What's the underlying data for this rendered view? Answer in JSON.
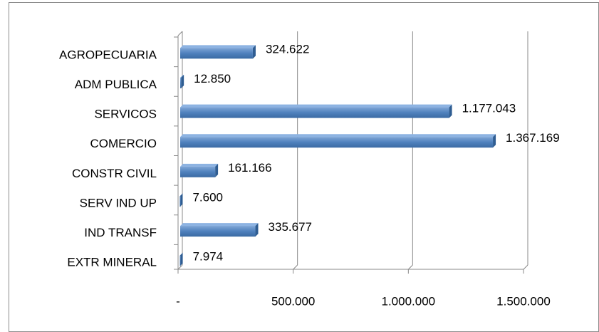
{
  "chart_data": {
    "type": "bar",
    "orientation": "horizontal",
    "categories": [
      "AGROPECUARIA",
      "ADM PUBLICA",
      "SERVICOS",
      "COMERCIO",
      "CONSTR CIVIL",
      "SERV IND  UP",
      "IND TRANSF",
      "EXTR MINERAL"
    ],
    "values": [
      324622,
      12850,
      1177043,
      1367169,
      161166,
      7600,
      335677,
      7974
    ],
    "value_labels": [
      "324.622",
      "12.850",
      "1.177.043",
      "1.367.169",
      "161.166",
      "7.600",
      "335.677",
      "7.974"
    ],
    "color": "#4f81bd",
    "xlim": [
      0,
      1500000
    ],
    "xticks": [
      {
        "value": 0,
        "label": "-"
      },
      {
        "value": 500000,
        "label": "500.000"
      },
      {
        "value": 1000000,
        "label": "1.000.000"
      },
      {
        "value": 1500000,
        "label": "1.500.000"
      }
    ],
    "grid": true
  }
}
